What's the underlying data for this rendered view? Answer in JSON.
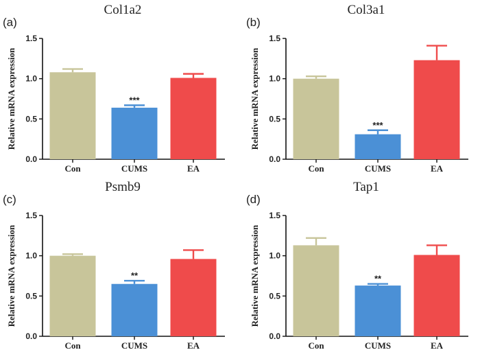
{
  "colors": {
    "Con": "#c8c59a",
    "CUMS": "#4b90d6",
    "EA": "#ef4b4b"
  },
  "chart_data": [
    {
      "type": "bar",
      "panel": "(a)",
      "title": "Col1a2",
      "ylabel": "Relative mRNA expression",
      "xlabel": "",
      "categories": [
        "Con",
        "CUMS",
        "EA"
      ],
      "values": [
        1.08,
        0.64,
        1.01
      ],
      "errors": [
        0.04,
        0.03,
        0.05
      ],
      "significance": [
        "",
        "***",
        ""
      ],
      "ylim": [
        0,
        1.5
      ],
      "yticks": [
        "0.0",
        "0.5",
        "1.0",
        "1.5"
      ]
    },
    {
      "type": "bar",
      "panel": "(b)",
      "title": "Col3a1",
      "ylabel": "Relative mRNA expression",
      "xlabel": "",
      "categories": [
        "Con",
        "CUMS",
        "EA"
      ],
      "values": [
        1.0,
        0.31,
        1.23
      ],
      "errors": [
        0.03,
        0.05,
        0.18
      ],
      "significance": [
        "",
        "***",
        ""
      ],
      "ylim": [
        0,
        1.5
      ],
      "yticks": [
        "0.0",
        "0.5",
        "1.0",
        "1.5"
      ]
    },
    {
      "type": "bar",
      "panel": "(c)",
      "title": "Psmb9",
      "ylabel": "Relative mRNA expression",
      "xlabel": "",
      "categories": [
        "Con",
        "CUMS",
        "EA"
      ],
      "values": [
        1.0,
        0.65,
        0.96
      ],
      "errors": [
        0.02,
        0.04,
        0.11
      ],
      "significance": [
        "",
        "**",
        ""
      ],
      "ylim": [
        0,
        1.5
      ],
      "yticks": [
        "0.0",
        "0.5",
        "1.0",
        "1.5"
      ]
    },
    {
      "type": "bar",
      "panel": "(d)",
      "title": "Tap1",
      "ylabel": "Relative mRNA expression",
      "xlabel": "",
      "categories": [
        "Con",
        "CUMS",
        "EA"
      ],
      "values": [
        1.13,
        0.63,
        1.01
      ],
      "errors": [
        0.09,
        0.02,
        0.12
      ],
      "significance": [
        "",
        "**",
        ""
      ],
      "ylim": [
        0,
        1.5
      ],
      "yticks": [
        "0.0",
        "0.5",
        "1.0",
        "1.5"
      ]
    }
  ]
}
